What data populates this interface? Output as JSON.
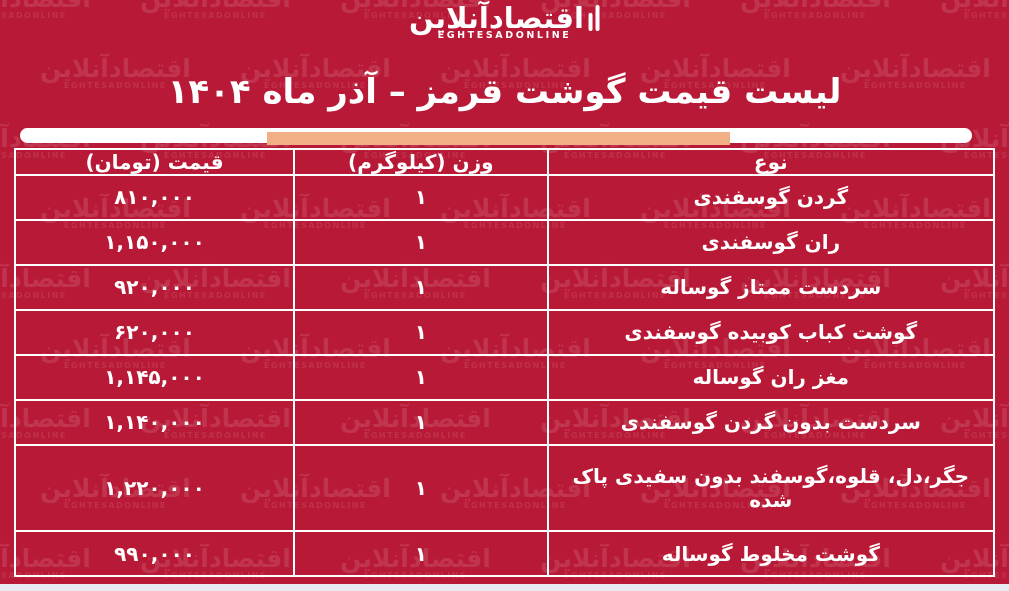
{
  "brand": {
    "persian": "اقتصادآنلاین",
    "latin": "EGHTESADONLINE"
  },
  "title": "لیست قیمت گوشت قرمز – آذر ماه ۱۴۰۴",
  "colors": {
    "background": "#b81936",
    "accent_underline": "#f2ae85",
    "table_border": "#ffffff",
    "text": "#ffffff",
    "bottom_strip": "#e9eaf2"
  },
  "table": {
    "columns": [
      {
        "key": "type",
        "label": "نوع"
      },
      {
        "key": "weight",
        "label": "وزن (کیلوگرم)"
      },
      {
        "key": "price",
        "label": "قیمت (تومان)"
      }
    ],
    "rows": [
      {
        "type": "گردن گوسفندی",
        "weight": "۱",
        "price": "۸۱۰,۰۰۰"
      },
      {
        "type": "ران گوسفندی",
        "weight": "۱",
        "price": "۱,۱۵۰,۰۰۰"
      },
      {
        "type": "سردست ممتاز گوساله",
        "weight": "۱",
        "price": "۹۲۰,۰۰۰"
      },
      {
        "type": "گوشت کباب کوبیده گوسفندی",
        "weight": "۱",
        "price": "۶۲۰,۰۰۰"
      },
      {
        "type": "مغز ران گوساله",
        "weight": "۱",
        "price": "۱,۱۴۵,۰۰۰"
      },
      {
        "type": "سردست بدون گردن گوسفندی",
        "weight": "۱",
        "price": "۱,۱۴۰,۰۰۰"
      },
      {
        "type": "جگر،دل، قلوه،گوسفند بدون سفیدی پاک شده",
        "weight": "۱",
        "price": "۱,۲۲۰,۰۰۰"
      },
      {
        "type": "گوشت مخلوط گوساله",
        "weight": "۱",
        "price": "۹۹۰,۰۰۰"
      }
    ]
  },
  "chart_data": {
    "type": "table",
    "title": "لیست قیمت گوشت قرمز – آذر ماه ۱۴۰۴",
    "columns": [
      "نوع",
      "وزن (کیلوگرم)",
      "قیمت (تومان)"
    ],
    "categories": [
      "گردن گوسفندی",
      "ران گوسفندی",
      "سردست ممتاز گوساله",
      "گوشت کباب کوبیده گوسفندی",
      "مغز ران گوساله",
      "سردست بدون گردن گوسفندی",
      "جگر،دل، قلوه،گوسفند بدون سفیدی پاک شده",
      "گوشت مخلوط گوساله"
    ],
    "weights_kg": [
      1,
      1,
      1,
      1,
      1,
      1,
      1,
      1
    ],
    "prices_toman": [
      810000,
      1150000,
      920000,
      620000,
      1145000,
      1140000,
      1220000,
      990000
    ]
  },
  "watermark": {
    "persian": "اقتصادآنلاین",
    "latin": "EGHTESADONLINE"
  }
}
